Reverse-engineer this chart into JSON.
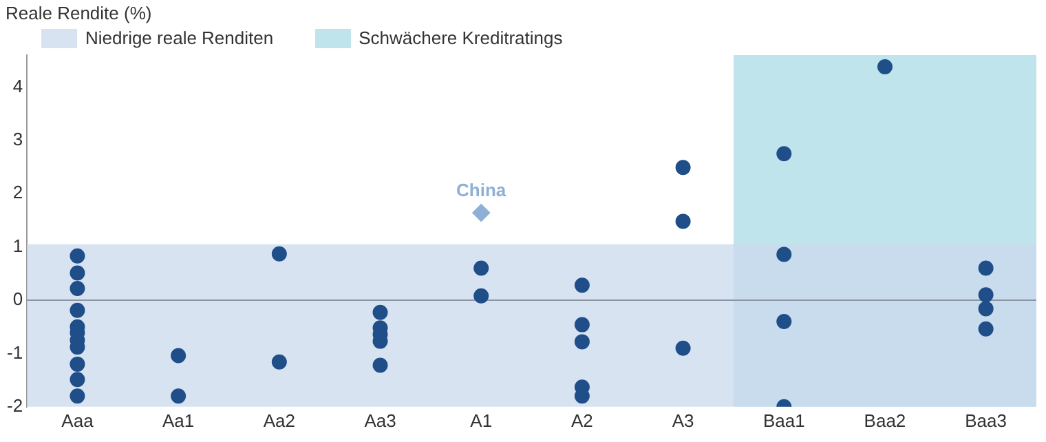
{
  "chart_data": {
    "type": "scatter",
    "ylabel": "Reale Rendite (%)",
    "categories": [
      "Aaa",
      "Aa1",
      "Aa2",
      "Aa3",
      "A1",
      "A2",
      "A3",
      "Baa1",
      "Baa2",
      "Baa3"
    ],
    "ylim": [
      -2,
      4.6
    ],
    "yticks": [
      -2,
      -1,
      0,
      1,
      2,
      3,
      4
    ],
    "grid": false,
    "legend": "top",
    "series": [
      {
        "color": "#1f4e89",
        "marker": "circle",
        "x": [
          "Aaa",
          "Aaa",
          "Aaa",
          "Aaa",
          "Aaa",
          "Aaa",
          "Aaa",
          "Aaa",
          "Aaa",
          "Aaa",
          "Aaa",
          "Aa1",
          "Aa1",
          "Aa2",
          "Aa2",
          "Aa3",
          "Aa3",
          "Aa3",
          "Aa3",
          "Aa3",
          "A1",
          "A1",
          "A2",
          "A2",
          "A2",
          "A2",
          "A2",
          "A3",
          "A3",
          "A3",
          "Baa1",
          "Baa1",
          "Baa1",
          "Baa1",
          "Baa2",
          "Baa3",
          "Baa3",
          "Baa3",
          "Baa3"
        ],
        "values": [
          0.83,
          0.51,
          0.22,
          -0.19,
          -0.5,
          -0.61,
          -0.75,
          -0.88,
          -1.2,
          -1.49,
          -1.8,
          -1.04,
          -1.8,
          0.87,
          -1.16,
          -0.23,
          -0.52,
          -0.64,
          -0.77,
          -1.22,
          0.6,
          0.08,
          0.28,
          -0.46,
          -0.78,
          -1.63,
          -1.8,
          2.49,
          1.48,
          -0.9,
          2.75,
          0.86,
          -0.4,
          -2.0,
          4.38,
          0.6,
          0.1,
          -0.16,
          -0.54
        ]
      },
      {
        "name": "China",
        "color": "#8fb0d6",
        "marker": "diamond",
        "x": [
          "A1"
        ],
        "values": [
          1.64
        ]
      }
    ],
    "ref_lines": [
      {
        "axis": "y",
        "value": 0,
        "color": "#8a96a3"
      }
    ],
    "bands": [
      {
        "axis": "y",
        "from": -2,
        "to": 1.05,
        "label": "Niedrige reale Renditen",
        "color": "#cbdaed"
      },
      {
        "axis": "x",
        "from": "Baa1",
        "to": "Baa3",
        "label": "Schwächere Kreditratings",
        "color": "#bfe4eb"
      }
    ]
  }
}
